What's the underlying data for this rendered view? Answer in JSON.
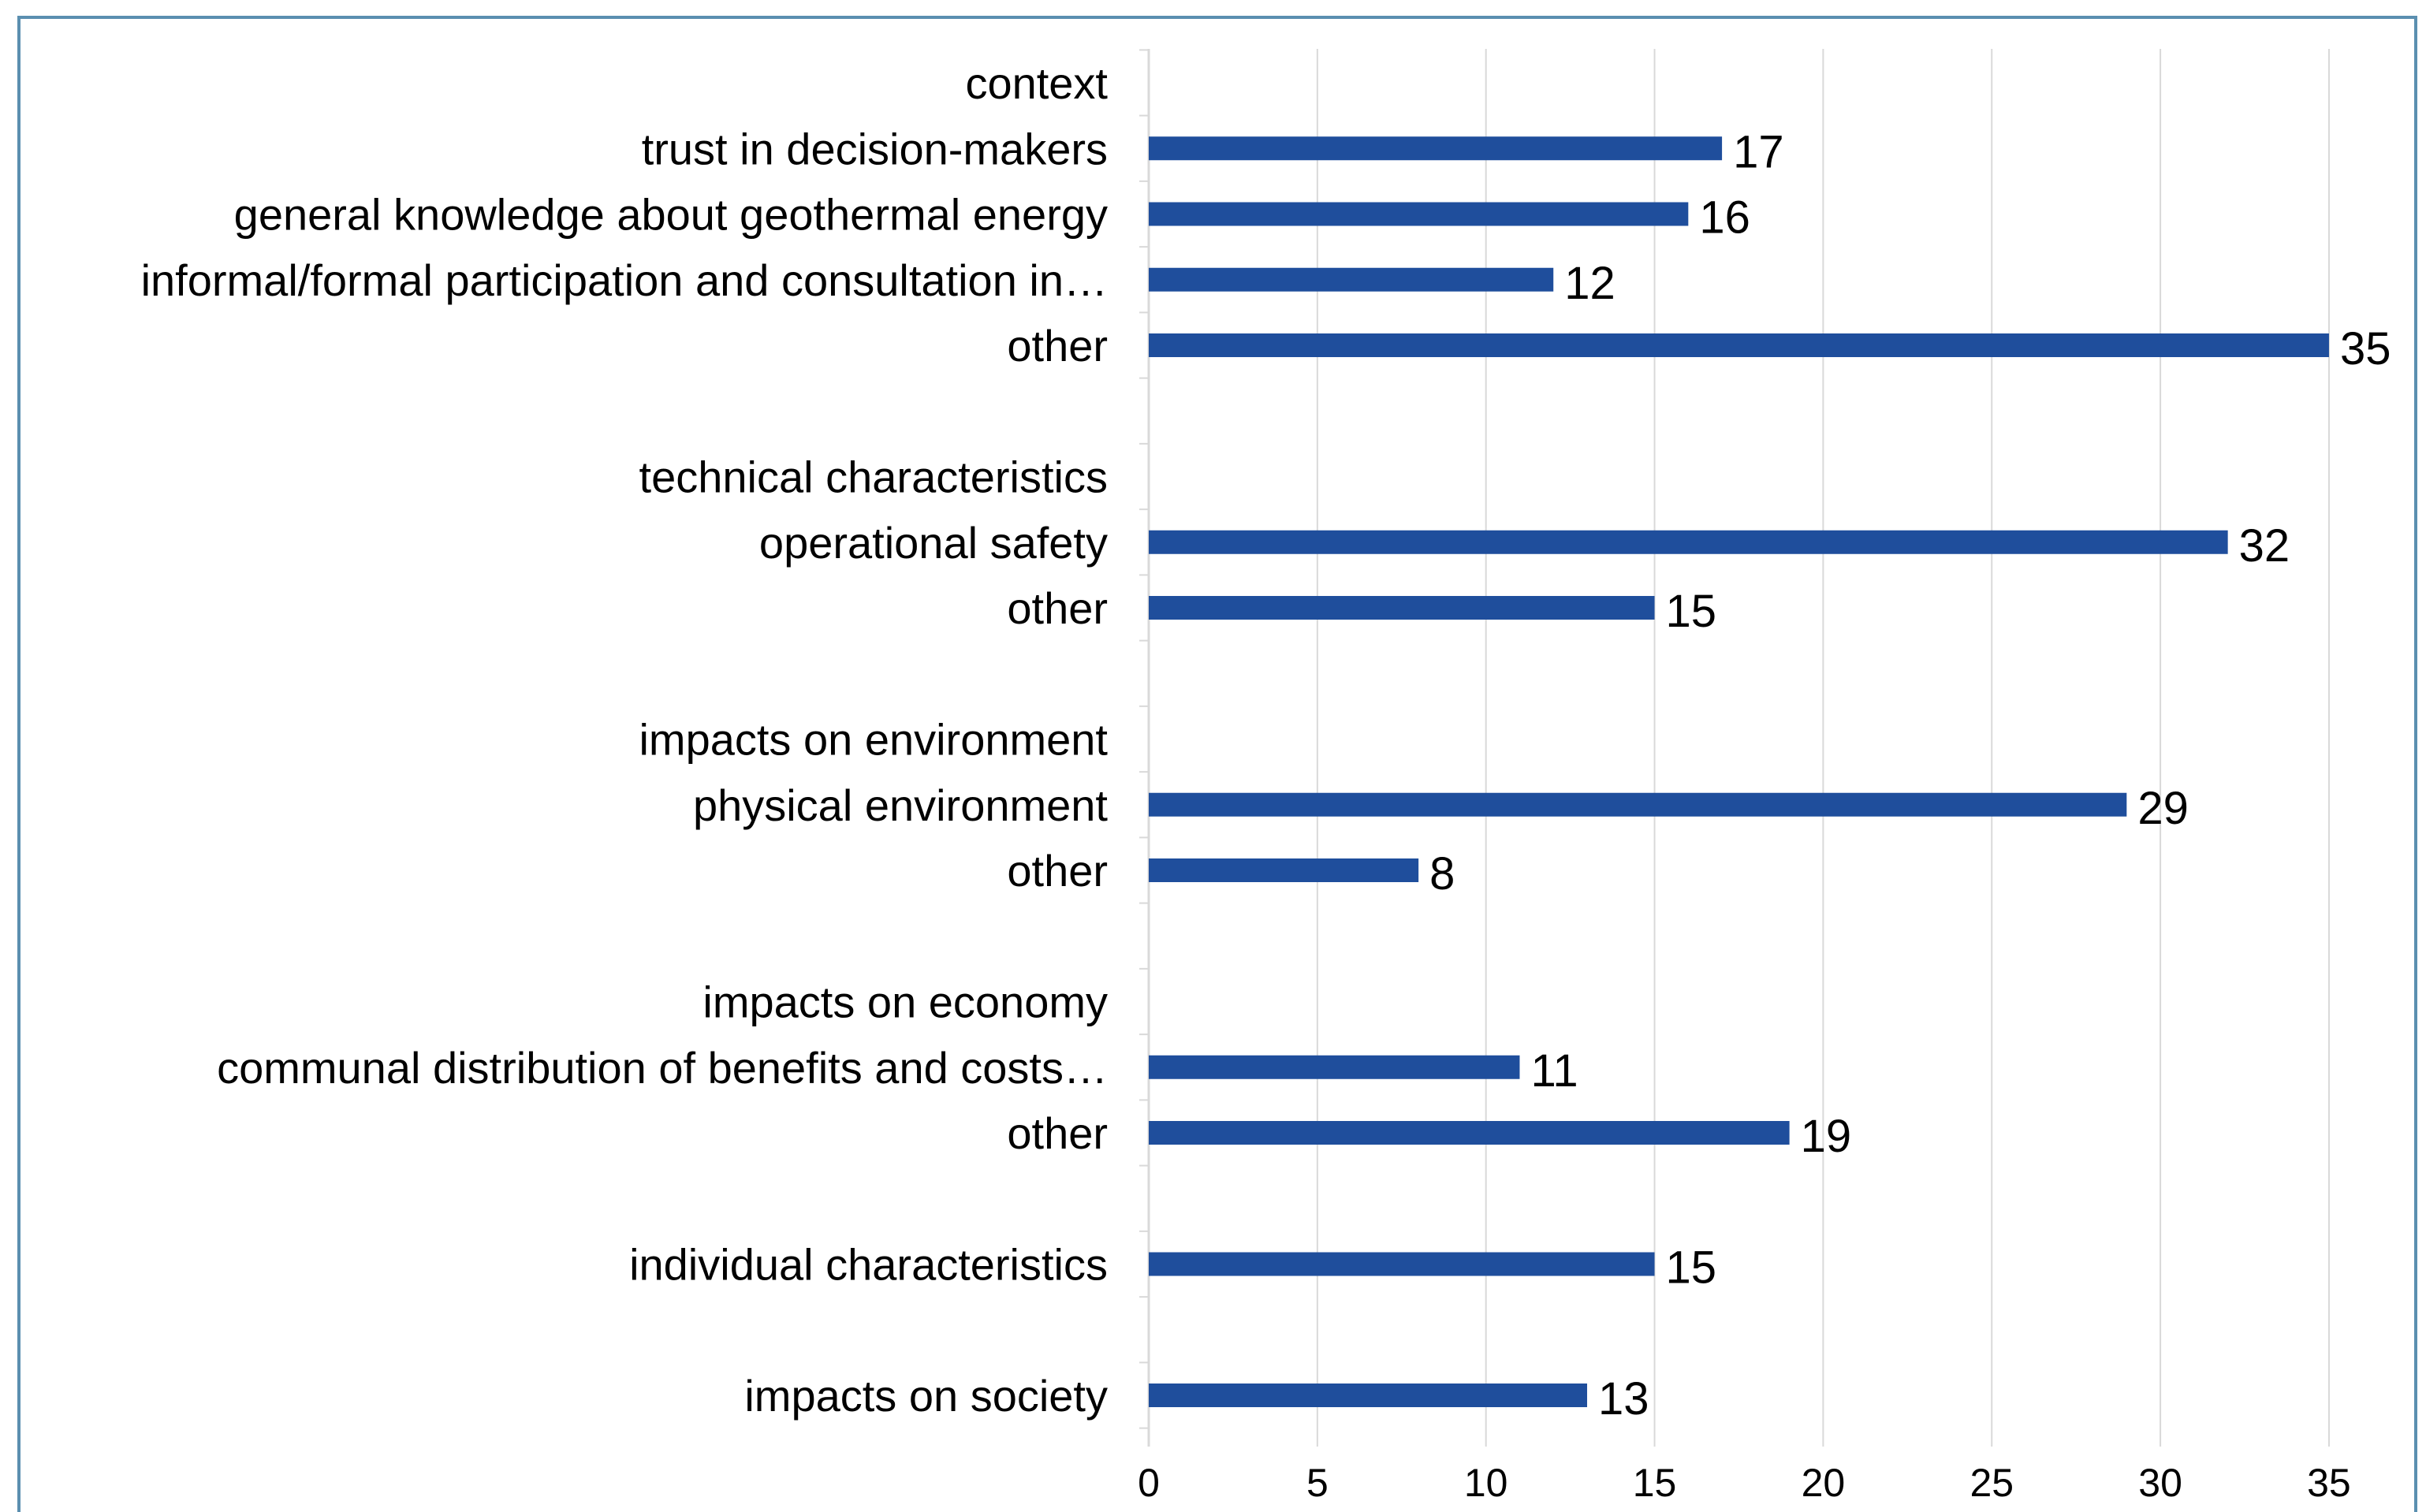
{
  "chart_data": {
    "type": "bar",
    "orientation": "horizontal",
    "title": "",
    "xlabel": "",
    "ylabel": "",
    "xlim": [
      0,
      35
    ],
    "x_ticks": [
      0,
      5,
      10,
      15,
      20,
      25,
      30,
      35
    ],
    "grid": "vertical",
    "legend": "none",
    "bar_color": "#1f4e9c",
    "frame_color": "#5b8fb0",
    "gridline_color": "#d9d9d9",
    "categories": [
      "context",
      "trust in decision-makers",
      "general knowledge about geothermal energy",
      "informal/formal participation and consultation in…",
      "other",
      "",
      "technical characteristics",
      "operational safety",
      "other",
      "",
      "impacts on environment",
      "physical environment",
      "other",
      "",
      "impacts on economy",
      "communal distribution of benefits and costs…",
      "other",
      "",
      "individual characteristics",
      "",
      "impacts on society"
    ],
    "values": [
      null,
      17,
      16,
      12,
      35,
      null,
      null,
      32,
      15,
      null,
      null,
      29,
      8,
      null,
      null,
      11,
      19,
      null,
      15,
      null,
      13
    ]
  }
}
